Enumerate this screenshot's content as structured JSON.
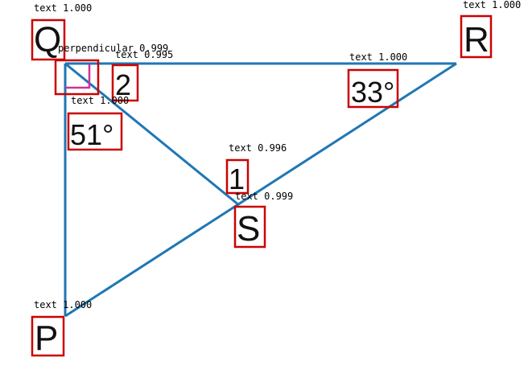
{
  "colors": {
    "line": "#1f77b4",
    "box": "#cc0000",
    "right_angle_mark": "#cc3399",
    "text": "#111111"
  },
  "points": {
    "q": "Q",
    "r": "R",
    "p": "P",
    "s": "S"
  },
  "angles": {
    "angle_51": "51°",
    "angle_33": "33°"
  },
  "angle_numbers": {
    "one": "1",
    "two": "2"
  },
  "detections": {
    "q": "text 1.000",
    "r": "text 1.000",
    "p": "text 1.000",
    "s": "text 0.999",
    "perpendicular": "perpendicular 0.999",
    "two": "text 0.995",
    "angle_51": "text 1.000",
    "angle_33": "text 1.000",
    "one": "text 0.996"
  }
}
